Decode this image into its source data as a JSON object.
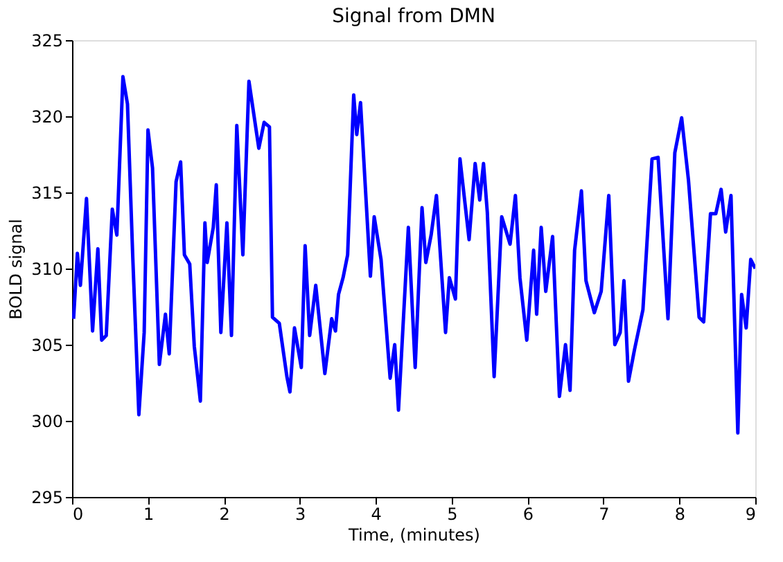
{
  "chart_data": {
    "type": "line",
    "title": "Signal from DMN",
    "xlabel": "Time, (minutes)",
    "ylabel": "BOLD signal",
    "xlim": [
      0,
      9
    ],
    "xticks": [
      0,
      1,
      2,
      3,
      4,
      5,
      6,
      7,
      8,
      9
    ],
    "ylim": [
      295,
      325
    ],
    "yticks": [
      295,
      300,
      305,
      310,
      315,
      320,
      325
    ],
    "grid": false,
    "marker": "none",
    "line_style": "solid",
    "series": [
      {
        "color": "#0000ff",
        "x": [
          0.02,
          0.07,
          0.11,
          0.19,
          0.27,
          0.34,
          0.39,
          0.45,
          0.53,
          0.59,
          0.67,
          0.73,
          0.8,
          0.88,
          0.95,
          1.0,
          1.06,
          1.15,
          1.23,
          1.28,
          1.37,
          1.43,
          1.48,
          1.55,
          1.61,
          1.69,
          1.75,
          1.78,
          1.86,
          1.9,
          1.96,
          2.04,
          2.1,
          2.17,
          2.25,
          2.33,
          2.46,
          2.53,
          2.6,
          2.64,
          2.73,
          2.83,
          2.87,
          2.93,
          3.02,
          3.07,
          3.13,
          3.21,
          3.33,
          3.42,
          3.47,
          3.51,
          3.57,
          3.63,
          3.71,
          3.75,
          3.8,
          3.93,
          3.98,
          4.07,
          4.19,
          4.25,
          4.3,
          4.43,
          4.52,
          4.61,
          4.66,
          4.73,
          4.8,
          4.92,
          4.97,
          5.05,
          5.11,
          5.23,
          5.31,
          5.37,
          5.42,
          5.47,
          5.56,
          5.66,
          5.77,
          5.84,
          5.9,
          5.99,
          6.08,
          6.12,
          6.18,
          6.24,
          6.33,
          6.42,
          6.5,
          6.56,
          6.62,
          6.71,
          6.77,
          6.88,
          6.97,
          7.07,
          7.15,
          7.22,
          7.27,
          7.33,
          7.41,
          7.52,
          7.64,
          7.72,
          7.85,
          7.94,
          8.03,
          8.12,
          8.26,
          8.32,
          8.41,
          8.48,
          8.55,
          8.61,
          8.68,
          8.77,
          8.82,
          8.88,
          8.94,
          9.0
        ],
        "values": [
          306.7,
          311,
          308.9,
          314.6,
          305.9,
          311.3,
          305.3,
          305.6,
          313.9,
          312.2,
          322.6,
          320.8,
          310.7,
          300.4,
          305.8,
          319.1,
          316.6,
          303.7,
          307,
          304.4,
          315.7,
          317,
          310.9,
          310.3,
          304.9,
          301.3,
          313,
          310.4,
          312.7,
          315.5,
          305.8,
          313,
          305.6,
          319.4,
          310.9,
          322.3,
          317.9,
          319.6,
          319.3,
          306.8,
          306.4,
          302.9,
          301.9,
          306.1,
          303.5,
          311.5,
          305.6,
          308.9,
          303.1,
          306.7,
          305.9,
          308.3,
          309.4,
          310.9,
          321.4,
          318.8,
          320.9,
          309.5,
          313.4,
          310.6,
          302.8,
          305,
          300.7,
          312.7,
          303.5,
          314,
          310.4,
          312.2,
          314.8,
          305.8,
          309.4,
          308,
          317.2,
          311.9,
          316.9,
          314.5,
          316.9,
          313.7,
          302.9,
          313.4,
          311.6,
          314.8,
          309.4,
          305.3,
          311.2,
          307,
          312.7,
          308.5,
          312.1,
          301.6,
          305,
          302,
          311.2,
          315.1,
          309.2,
          307.1,
          308.5,
          314.8,
          305,
          305.8,
          309.2,
          302.6,
          304.7,
          307.3,
          317.2,
          317.3,
          306.7,
          317.6,
          319.9,
          315.8,
          306.8,
          306.5,
          313.6,
          313.6,
          315.2,
          312.4,
          314.8,
          299.2,
          308.3,
          306.1,
          310.6,
          310
        ]
      }
    ]
  }
}
